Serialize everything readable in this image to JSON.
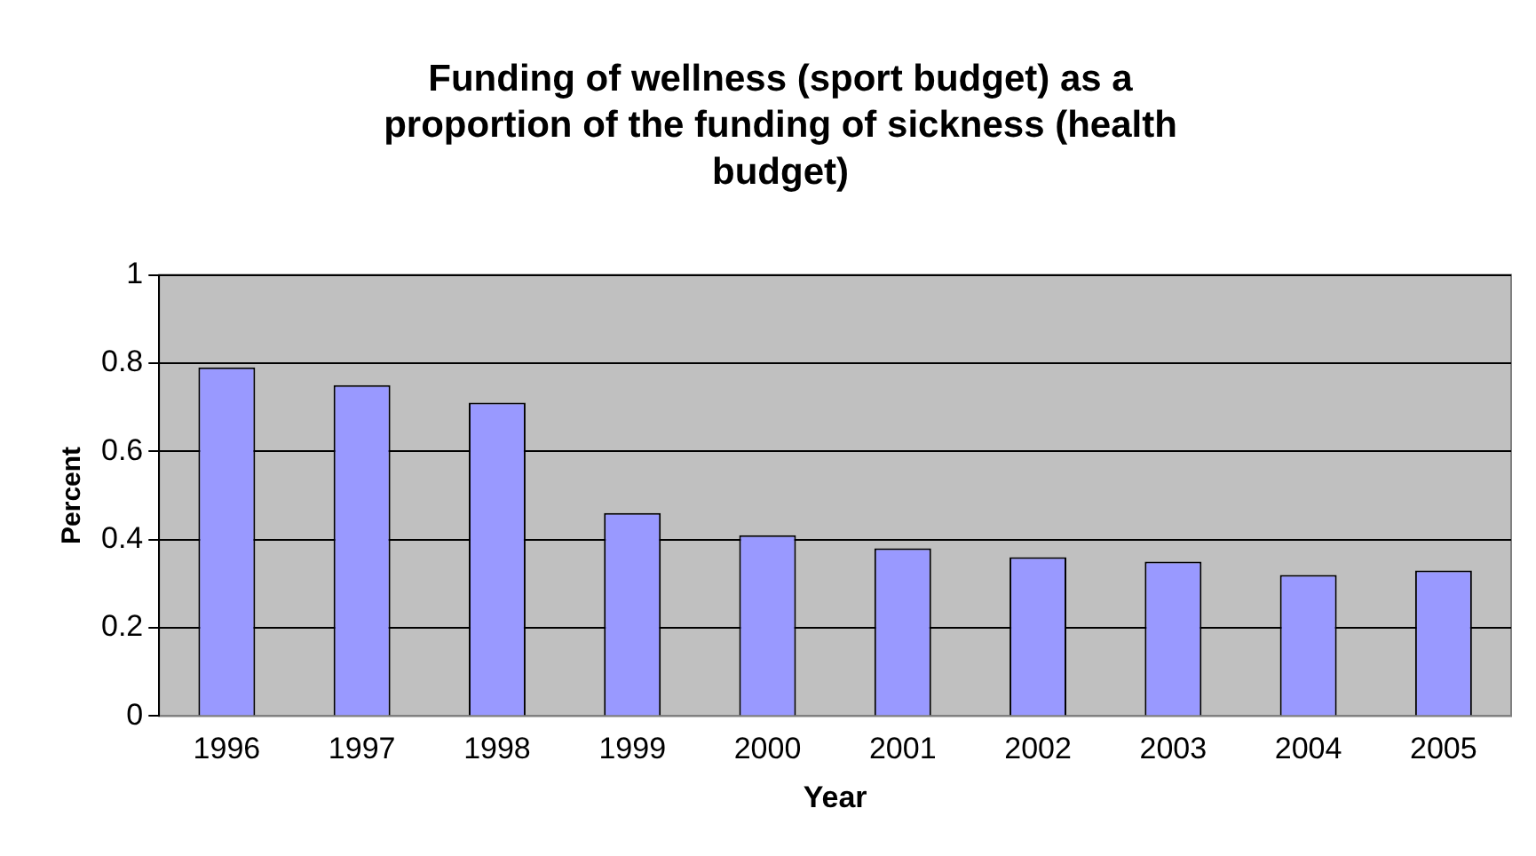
{
  "chart_data": {
    "type": "bar",
    "title": "Funding of wellness (sport budget) as a proportion of the funding of sickness (health budget)",
    "xlabel": "Year",
    "ylabel": "Percent",
    "categories": [
      "1996",
      "1997",
      "1998",
      "1999",
      "2000",
      "2001",
      "2002",
      "2003",
      "2004",
      "2005"
    ],
    "values": [
      0.79,
      0.75,
      0.71,
      0.46,
      0.41,
      0.38,
      0.36,
      0.35,
      0.32,
      0.33
    ],
    "color": "#9999ff",
    "ylim": [
      0,
      1
    ],
    "yticks": [
      0,
      0.2,
      0.4,
      0.6,
      0.8,
      1
    ],
    "grid": "y",
    "legend": false
  }
}
